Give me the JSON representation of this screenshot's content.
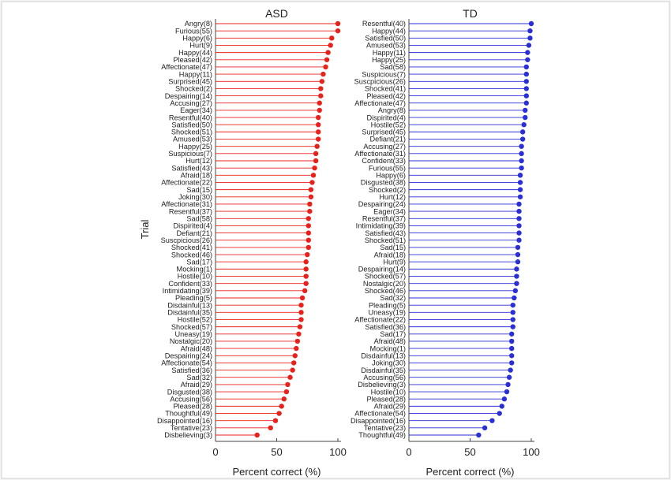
{
  "chart_data": [
    {
      "type": "scatter",
      "title": "ASD",
      "xlabel": "Percent correct (%)",
      "ylabel": "Trial",
      "xlim": [
        0,
        100
      ],
      "xticks": [
        0,
        50,
        100
      ],
      "color": "#e8221b",
      "categories": [
        "Angry(8)",
        "Furious(55)",
        "Happy(6)",
        "Hurt(9)",
        "Happy(44)",
        "Pleased(42)",
        "Affectionate(47)",
        "Happy(11)",
        "Surprised(45)",
        "Shocked(2)",
        "Despairing(14)",
        "Accusing(27)",
        "Eager(34)",
        "Resentful(40)",
        "Satisfied(50)",
        "Shocked(51)",
        "Amused(53)",
        "Happy(25)",
        "Suspicious(7)",
        "Hurt(12)",
        "Satisfied(43)",
        "Afraid(18)",
        "Affectionate(22)",
        "Sad(15)",
        "Joking(30)",
        "Affectionate(31)",
        "Resentful(37)",
        "Sad(58)",
        "Dispirited(4)",
        "Defiant(21)",
        "Suscpicious(26)",
        "Shocked(41)",
        "Shocked(46)",
        "Sad(17)",
        "Mocking(1)",
        "Hostile(10)",
        "Confident(33)",
        "Intimidating(39)",
        "Pleading(5)",
        "Disdainful(13)",
        "Disdainful(35)",
        "Hostile(52)",
        "Shocked(57)",
        "Uneasy(19)",
        "Nostalgic(20)",
        "Afraid(48)",
        "Despairing(24)",
        "Affectionate(54)",
        "Satisfied(36)",
        "Sad(32)",
        "Afraid(29)",
        "Disgusted(38)",
        "Accusing(56)",
        "Pleased(28)",
        "Thoughtful(49)",
        "Disappointed(16)",
        "Tentative(23)",
        "Disbelieving(3)"
      ],
      "values": [
        100,
        100,
        95,
        94,
        92,
        91,
        90,
        88,
        87,
        86,
        86,
        85,
        85,
        84,
        84,
        84,
        84,
        83,
        82,
        82,
        81,
        80,
        79,
        78,
        78,
        77,
        77,
        76,
        76,
        76,
        76,
        76,
        75,
        74,
        74,
        74,
        74,
        73,
        71,
        70,
        70,
        70,
        69,
        68,
        67,
        66,
        65,
        64,
        63,
        61,
        59,
        58,
        56,
        54,
        52,
        49,
        45,
        34
      ]
    },
    {
      "type": "scatter",
      "title": "TD",
      "xlabel": "Percent correct (%)",
      "ylabel": "",
      "xlim": [
        0,
        100
      ],
      "xticks": [
        0,
        50,
        100
      ],
      "color": "#2b2fd6",
      "categories": [
        "Resentful(40)",
        "Happy(44)",
        "Satisfied(50)",
        "Amused(53)",
        "Happy(11)",
        "Happy(25)",
        "Sad(58)",
        "Suspicious(7)",
        "Suscpicious(26)",
        "Shocked(41)",
        "Pleased(42)",
        "Affectionate(47)",
        "Angry(8)",
        "Dispirited(4)",
        "Hostile(52)",
        "Surprised(45)",
        "Defiant(21)",
        "Accusing(27)",
        "Affectionate(31)",
        "Confident(33)",
        "Furious(55)",
        "Happy(6)",
        "Disgusted(38)",
        "Shocked(2)",
        "Hurt(12)",
        "Despairing(24)",
        "Eager(34)",
        "Resentful(37)",
        "Intimidating(39)",
        "Satisfied(43)",
        "Shocked(51)",
        "Sad(15)",
        "Afraid(18)",
        "Hurt(9)",
        "Despairing(14)",
        "Shocked(57)",
        "Nostalgic(20)",
        "Shocked(46)",
        "Sad(32)",
        "Pleading(5)",
        "Uneasy(19)",
        "Affectionate(22)",
        "Satisfied(36)",
        "Sad(17)",
        "Afraid(48)",
        "Mocking(1)",
        "Disdainful(13)",
        "Joking(30)",
        "Disdainful(35)",
        "Accusing(56)",
        "Disbelieving(3)",
        "Hostile(10)",
        "Pleased(28)",
        "Afraid(29)",
        "Affectionate(54)",
        "Disappointed(16)",
        "Tentative(23)",
        "Thoughtful(49)"
      ],
      "values": [
        100,
        99,
        99,
        98,
        97,
        97,
        96,
        96,
        96,
        96,
        96,
        96,
        95,
        95,
        94,
        93,
        93,
        92,
        92,
        92,
        92,
        91,
        91,
        91,
        91,
        90,
        90,
        90,
        90,
        90,
        90,
        89,
        89,
        89,
        88,
        88,
        88,
        87,
        86,
        85,
        85,
        85,
        85,
        84,
        84,
        84,
        84,
        84,
        83,
        82,
        81,
        80,
        78,
        76,
        74,
        68,
        62,
        57
      ]
    }
  ]
}
